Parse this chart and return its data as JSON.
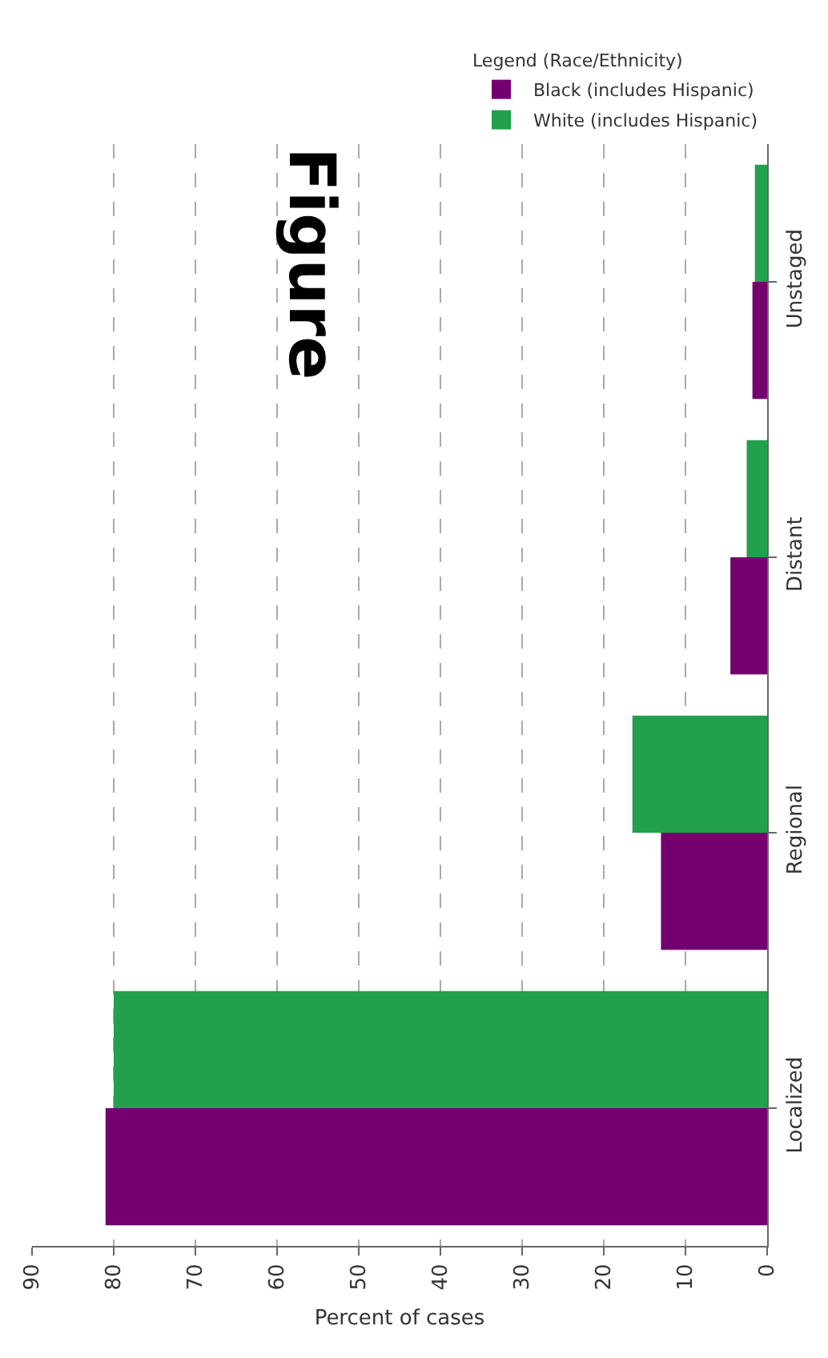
{
  "chart_data": {
    "type": "bar",
    "orientation": "horizontal",
    "title": "Figure",
    "xlabel": "Percent of cases",
    "legend_title": "Legend (Race/Ethnicity)",
    "categories": [
      "Unstaged",
      "Distant",
      "Regional",
      "Localized"
    ],
    "series": [
      {
        "name": "Black (includes Hispanic)",
        "color": "#740070",
        "values": [
          1.8,
          4.5,
          13,
          81
        ]
      },
      {
        "name": "White (includes Hispanic)",
        "color": "#22a04b",
        "values": [
          1.5,
          2.5,
          16.5,
          80
        ]
      }
    ],
    "xlim": [
      90,
      0
    ],
    "xticks": [
      90,
      80,
      70,
      60,
      50,
      40,
      30,
      20,
      10,
      0
    ],
    "grid": "x",
    "line_style": "dashed",
    "legend": "top right"
  }
}
